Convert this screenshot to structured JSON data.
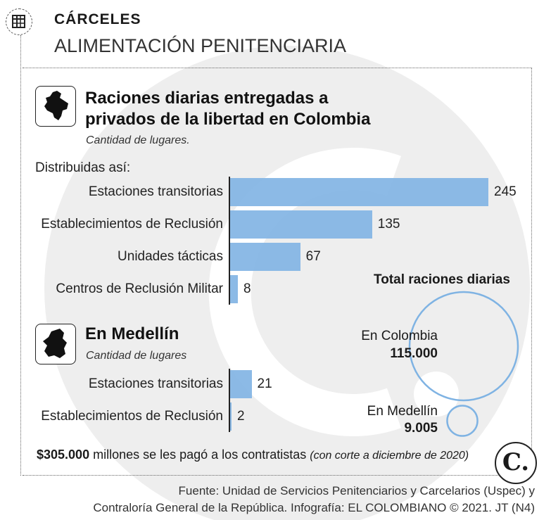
{
  "header": {
    "kicker": "CÁRCELES",
    "title": "ALIMENTACIÓN PENITENCIARIA",
    "icon": "table-icon"
  },
  "chart_data": [
    {
      "type": "bar",
      "orientation": "horizontal",
      "title": "Raciones diarias entregadas a privados de la libertad en Colombia",
      "title_lines": [
        "Raciones diarias entregadas a",
        "privados de la libertad en Colombia"
      ],
      "subtitle": "Cantidad de lugares.",
      "intro": "Distribuidas así:",
      "categories": [
        "Estaciones transitorias",
        "Establecimientos de Reclusión",
        "Unidades tácticas",
        "Centros de Reclusión Militar"
      ],
      "values": [
        245,
        135,
        67,
        8
      ],
      "value_labels": [
        "245",
        "135",
        "67",
        "8"
      ],
      "color": "#7fb3e3",
      "icon": "colombia-map-icon"
    },
    {
      "type": "bar",
      "orientation": "horizontal",
      "title": "En Medellín",
      "subtitle": "Cantidad de lugares",
      "categories": [
        "Estaciones transitorias",
        "Establecimientos de Reclusión"
      ],
      "values": [
        21,
        2
      ],
      "value_labels": [
        "21",
        "2"
      ],
      "color": "#7fb3e3",
      "icon": "medellin-map-icon"
    },
    {
      "type": "bubble",
      "title": "Total raciones diarias",
      "categories": [
        "En Colombia",
        "En Medellín"
      ],
      "values": [
        115000,
        9005
      ],
      "value_labels": [
        "115.000",
        "9.005"
      ],
      "color": "#7fb3e3"
    }
  ],
  "footer": {
    "amount": "$305.000",
    "text": " millones se les pagó a los contratistas ",
    "note": "(con corte a diciembre de 2020)",
    "logo_letter": "C.",
    "source_line1": "Fuente: Unidad de Servicios Penitenciarios y Carcelarios (Uspec) y",
    "source_line2": "Contraloría General de la República. Infografía: EL COLOMBIANO © 2021. JT (N4)"
  }
}
